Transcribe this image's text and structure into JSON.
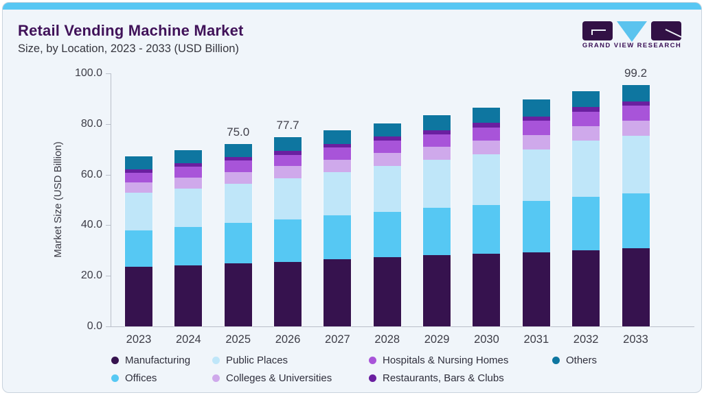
{
  "header": {
    "title": "Retail Vending Machine Market",
    "subtitle": "Size, by Location, 2023 - 2033 (USD Billion)",
    "logo_text": "GRAND VIEW RESEARCH"
  },
  "colors": {
    "accent_band": "#57C7F3",
    "card_background": "#F0F5FA",
    "title_text": "#401259",
    "axis_line": "#B9BFC9",
    "logo_purple": "#321145",
    "logo_blue": "#5BC3EE"
  },
  "chart_data": {
    "type": "bar",
    "stacked": true,
    "title": "Retail Vending Machine Market Size, by Location, 2023 - 2033 (USD Billion)",
    "ylabel": "Market Size (USD Billion)",
    "xlabel": "",
    "ylim": [
      0,
      100
    ],
    "yticks": [
      "0.0",
      "20.0",
      "40.0",
      "60.0",
      "80.0",
      "100.0"
    ],
    "grid": false,
    "legend_position": "bottom",
    "categories": [
      "2023",
      "2024",
      "2025",
      "2026",
      "2027",
      "2028",
      "2029",
      "2030",
      "2031",
      "2032",
      "2033"
    ],
    "series": [
      {
        "name": "Manufacturing",
        "color": "#36124E",
        "values": [
          24.4,
          25.1,
          25.9,
          26.6,
          27.5,
          28.4,
          29.4,
          29.8,
          30.3,
          31.2,
          32.0
        ]
      },
      {
        "name": "Offices",
        "color": "#56C8F3",
        "values": [
          14.9,
          15.7,
          16.6,
          17.4,
          18.0,
          18.6,
          19.2,
          20.1,
          21.1,
          21.9,
          22.7
        ]
      },
      {
        "name": "Public Places",
        "color": "#BFE6F9",
        "values": [
          15.6,
          15.9,
          16.2,
          16.8,
          17.9,
          18.9,
          19.8,
          20.7,
          21.4,
          23.1,
          23.7
        ]
      },
      {
        "name": "Colleges & Universities",
        "color": "#CFA9EB",
        "values": [
          4.2,
          4.5,
          4.8,
          5.0,
          5.1,
          5.3,
          5.4,
          5.7,
          5.9,
          6.0,
          6.1
        ]
      },
      {
        "name": "Hospitals & Nursing Homes",
        "color": "#A854D9",
        "values": [
          4.1,
          4.3,
          4.6,
          4.7,
          4.9,
          5.0,
          5.2,
          5.5,
          5.7,
          5.9,
          6.1
        ]
      },
      {
        "name": "Restaurants, Bars & Clubs",
        "color": "#6A1FA0",
        "values": [
          1.4,
          1.5,
          1.5,
          1.6,
          1.6,
          1.7,
          1.7,
          1.8,
          1.8,
          1.9,
          1.9
        ]
      },
      {
        "name": "Others",
        "color": "#0E76A0",
        "values": [
          5.4,
          5.4,
          5.4,
          5.6,
          5.5,
          5.6,
          6.1,
          6.4,
          6.9,
          6.5,
          6.7
        ]
      }
    ],
    "totals": [
      70.0,
      72.4,
      75.0,
      77.7,
      80.5,
      83.5,
      86.8,
      90.0,
      93.1,
      96.5,
      99.2
    ],
    "bar_labels": {
      "2025": "75.0",
      "2026": "77.7",
      "2033": "99.2"
    }
  },
  "legend": {
    "row1": [
      "Manufacturing",
      "Public Places",
      "Hospitals & Nursing Homes",
      "Others"
    ],
    "row2": [
      "Offices",
      "Colleges & Universities",
      "Restaurants, Bars & Clubs"
    ]
  }
}
